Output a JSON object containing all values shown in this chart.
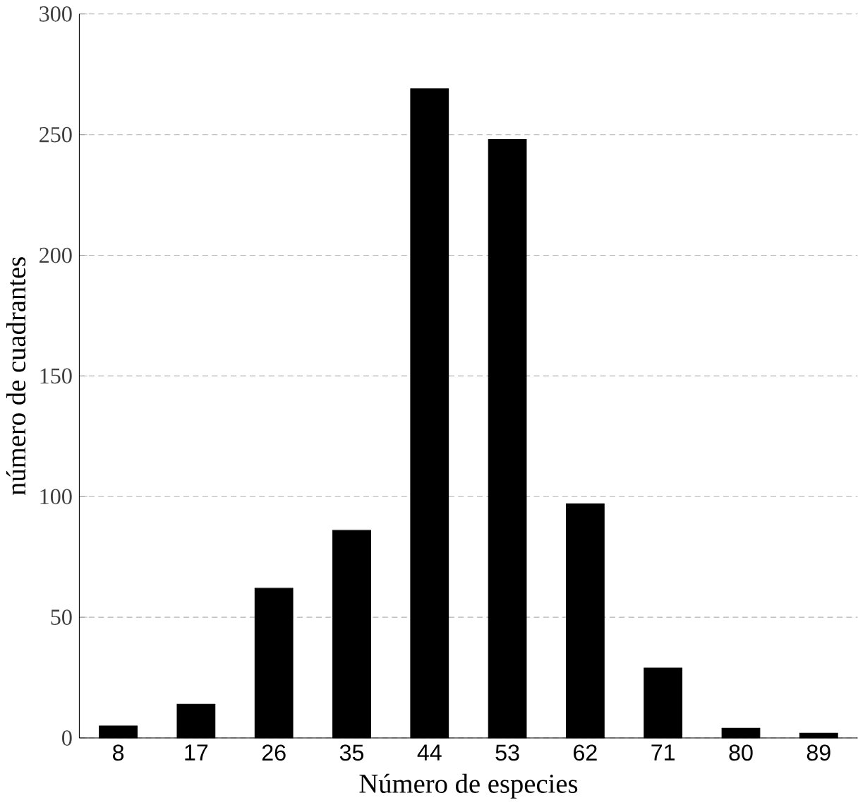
{
  "chart_data": {
    "type": "bar",
    "xlabel": "Número de especies",
    "ylabel": "número de cuadrantes",
    "categories": [
      "8",
      "17",
      "26",
      "35",
      "44",
      "53",
      "62",
      "71",
      "80",
      "89"
    ],
    "values": [
      5,
      14,
      62,
      86,
      269,
      248,
      97,
      29,
      4,
      2
    ],
    "color": "#000000",
    "ylim": [
      0,
      300
    ],
    "yticks": [
      0,
      50,
      100,
      150,
      200,
      250,
      300
    ],
    "grid": "y"
  }
}
